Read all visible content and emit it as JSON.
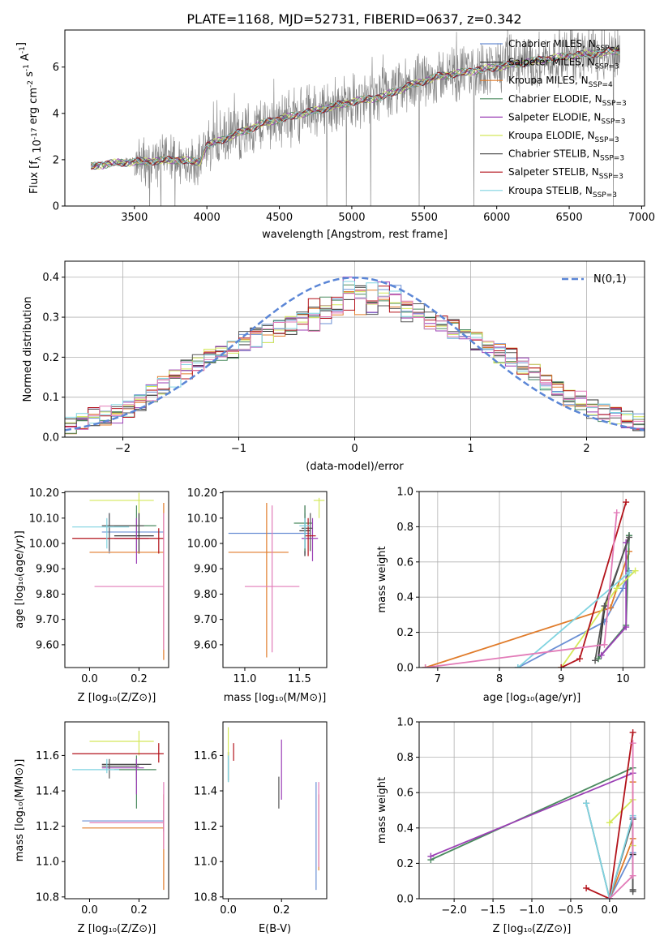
{
  "figure": {
    "title": "PLATE=1168, MJD=52731, FIBERID=0637, z=0.342"
  },
  "series_styles": [
    {
      "name": "Chabrier MILES",
      "nssp": "4",
      "color": "#6a8fd4"
    },
    {
      "name": "Salpeter MILES",
      "nssp": "3",
      "color": "#2e2e2e"
    },
    {
      "name": "Kroupa MILES",
      "nssp": "4",
      "color": "#e07b2a"
    },
    {
      "name": "Chabrier ELODIE",
      "nssp": "3",
      "color": "#4a8a5f"
    },
    {
      "name": "Salpeter ELODIE",
      "nssp": "3",
      "color": "#9b3fb5"
    },
    {
      "name": "Kroupa ELODIE",
      "nssp": "3",
      "color": "#d4e85a"
    },
    {
      "name": "Chabrier STELIB",
      "nssp": "3",
      "color": "#555555"
    },
    {
      "name": "Salpeter STELIB",
      "nssp": "3",
      "color": "#b3131b"
    },
    {
      "name": "Kroupa STELIB",
      "nssp": "3",
      "color": "#7fd3e0"
    }
  ],
  "chart_data": [
    {
      "id": "spectrum",
      "type": "line",
      "xlabel": "wavelength [Angstrom, rest frame]",
      "ylabel": "Flux [f_λ 10^-17 erg cm^-2 s^-1 A^-1]",
      "xlim": [
        3020,
        7020
      ],
      "ylim": [
        0,
        7.6
      ],
      "xticks": [
        3500,
        4000,
        4500,
        5000,
        5500,
        6000,
        6500,
        7000
      ],
      "yticks": [
        0,
        2,
        4,
        6
      ],
      "data_color": "#808080",
      "legend_entries": [
        "Chabrier MILES, N_SSP=4",
        "Salpeter MILES, N_SSP=3",
        "Kroupa MILES, N_SSP=4",
        "Chabrier ELODIE, N_SSP=3",
        "Salpeter ELODIE, N_SSP=3",
        "Kroupa ELODIE, N_SSP=3",
        "Chabrier STELIB, N_SSP=3",
        "Salpeter STELIB, N_SSP=3",
        "Kroupa STELIB, N_SSP=3"
      ],
      "legend_position": "upper right",
      "continuum_anchors_x": [
        3200,
        3350,
        3500,
        3650,
        3800,
        3950,
        4000,
        4200,
        4400,
        4600,
        4800,
        5000,
        5200,
        5400,
        5600,
        5800,
        6000,
        6200,
        6400,
        6600,
        6850
      ],
      "continuum_anchors_y": [
        1.7,
        1.85,
        1.9,
        1.95,
        2.0,
        1.9,
        2.6,
        3.1,
        3.6,
        3.9,
        4.2,
        4.5,
        4.7,
        5.2,
        5.6,
        5.8,
        6.0,
        6.2,
        6.4,
        6.55,
        6.7
      ]
    },
    {
      "id": "residuals",
      "type": "histogram",
      "xlabel": "(data-model)/error",
      "ylabel": "Normed distribution",
      "xlim": [
        -2.5,
        2.5
      ],
      "ylim": [
        0,
        0.44
      ],
      "xticks": [
        -2,
        -1,
        0,
        1,
        2
      ],
      "yticks": [
        0.0,
        0.1,
        0.2,
        0.3,
        0.4
      ],
      "grid": true,
      "bin_start": -2.5,
      "bin_width": 0.1,
      "mean_profile": [
        0.03,
        0.04,
        0.05,
        0.055,
        0.06,
        0.07,
        0.09,
        0.11,
        0.13,
        0.15,
        0.17,
        0.19,
        0.2,
        0.21,
        0.22,
        0.24,
        0.25,
        0.26,
        0.27,
        0.28,
        0.29,
        0.3,
        0.32,
        0.34,
        0.35,
        0.35,
        0.34,
        0.34,
        0.33,
        0.32,
        0.31,
        0.29,
        0.28,
        0.27,
        0.26,
        0.24,
        0.23,
        0.21,
        0.2,
        0.18,
        0.16,
        0.14,
        0.12,
        0.1,
        0.09,
        0.07,
        0.06,
        0.05,
        0.045,
        0.04
      ],
      "gaussian_label": "N(0,1)",
      "gaussian_color": "#5b86d6",
      "legend_position": "upper right"
    },
    {
      "id": "age-vs-Z",
      "type": "errorbar",
      "xlabel": "Z [log10(Z/Z_sun)]",
      "ylabel": "age [log10(age/yr)]",
      "xlim": [
        -0.1,
        0.32
      ],
      "ylim": [
        9.51,
        10.205
      ],
      "xticks": [
        0.0,
        0.2
      ],
      "yticks": [
        9.6,
        9.7,
        9.8,
        9.9,
        10.0,
        10.1,
        10.2
      ],
      "points": [
        {
          "x": 0.08,
          "y": 10.045,
          "xlo": 0.05,
          "xhi": 0.3,
          "ylo": 9.96,
          "yhi": 10.12,
          "c": 0
        },
        {
          "x": 0.2,
          "y": 10.03,
          "xlo": 0.1,
          "xhi": 0.26,
          "ylo": 9.96,
          "yhi": 10.12,
          "c": 1
        },
        {
          "x": 0.3,
          "y": 9.965,
          "xlo": 0.0,
          "xhi": 0.3,
          "ylo": 9.54,
          "yhi": 10.16,
          "c": 2
        },
        {
          "x": 0.19,
          "y": 10.07,
          "xlo": 0.1,
          "xhi": 0.27,
          "ylo": 9.97,
          "yhi": 10.15,
          "c": 3
        },
        {
          "x": 0.19,
          "y": 10.02,
          "xlo": 0.1,
          "xhi": 0.24,
          "ylo": 9.92,
          "yhi": 10.1,
          "c": 4
        },
        {
          "x": 0.2,
          "y": 10.17,
          "xlo": 0.0,
          "xhi": 0.26,
          "ylo": 10.12,
          "yhi": 10.2,
          "c": 5
        },
        {
          "x": 0.08,
          "y": 10.07,
          "xlo": 0.05,
          "xhi": 0.22,
          "ylo": 9.97,
          "yhi": 10.12,
          "c": 6
        },
        {
          "x": 0.28,
          "y": 10.02,
          "xlo": -0.07,
          "xhi": 0.3,
          "ylo": 9.96,
          "yhi": 10.06,
          "c": 7
        },
        {
          "x": 0.07,
          "y": 10.065,
          "xlo": -0.07,
          "xhi": 0.16,
          "ylo": 9.98,
          "yhi": 10.1,
          "c": 8
        },
        {
          "x": 0.3,
          "y": 9.83,
          "xlo": 0.02,
          "xhi": 0.3,
          "ylo": 9.58,
          "yhi": 10.12,
          "c": 9
        }
      ]
    },
    {
      "id": "age-vs-mass",
      "type": "errorbar",
      "xlabel": "mass [log10(M/M_sun)]",
      "ylabel": "",
      "xlim": [
        10.8,
        11.75
      ],
      "ylim": [
        9.51,
        10.205
      ],
      "xticks": [
        11.0,
        11.5
      ],
      "yticks": [
        9.6,
        9.7,
        9.8,
        9.9,
        10.0,
        10.1,
        10.2
      ],
      "points": [
        {
          "x": 11.55,
          "y": 10.04,
          "xlo": 10.85,
          "xhi": 11.6,
          "ylo": 9.96,
          "yhi": 10.12,
          "c": 0
        },
        {
          "x": 11.55,
          "y": 10.05,
          "xlo": 11.5,
          "xhi": 11.6,
          "ylo": 9.95,
          "yhi": 10.15,
          "c": 1
        },
        {
          "x": 11.2,
          "y": 9.965,
          "xlo": 10.85,
          "xhi": 11.4,
          "ylo": 9.55,
          "yhi": 10.16,
          "c": 2
        },
        {
          "x": 11.55,
          "y": 10.08,
          "xlo": 11.45,
          "xhi": 11.62,
          "ylo": 9.97,
          "yhi": 10.15,
          "c": 3
        },
        {
          "x": 11.62,
          "y": 10.02,
          "xlo": 11.52,
          "xhi": 11.67,
          "ylo": 9.93,
          "yhi": 10.1,
          "c": 4
        },
        {
          "x": 11.68,
          "y": 10.17,
          "xlo": 11.63,
          "xhi": 11.73,
          "ylo": 10.1,
          "yhi": 10.18,
          "c": 5
        },
        {
          "x": 11.6,
          "y": 10.06,
          "xlo": 11.52,
          "xhi": 11.62,
          "ylo": 9.97,
          "yhi": 10.12,
          "c": 6
        },
        {
          "x": 11.58,
          "y": 10.03,
          "xlo": 11.55,
          "xhi": 11.65,
          "ylo": 9.95,
          "yhi": 10.1,
          "c": 7
        },
        {
          "x": 11.55,
          "y": 10.07,
          "xlo": 11.5,
          "xhi": 11.6,
          "ylo": 9.98,
          "yhi": 10.1,
          "c": 8
        },
        {
          "x": 11.25,
          "y": 9.83,
          "xlo": 11.0,
          "xhi": 11.5,
          "ylo": 9.57,
          "yhi": 10.15,
          "c": 9
        }
      ]
    },
    {
      "id": "weight-vs-age",
      "type": "line",
      "xlabel": "age [log10(age/yr)]",
      "ylabel": "mass weight",
      "xlim": [
        6.7,
        10.35
      ],
      "ylim": [
        0,
        1
      ],
      "xticks": [
        7,
        8,
        9,
        10
      ],
      "yticks": [
        0.0,
        0.2,
        0.4,
        0.6,
        0.8,
        1.0
      ],
      "grid": true,
      "lines": [
        {
          "c": 0,
          "x": [
            8.3,
            9.7,
            10.0,
            10.1
          ],
          "y": [
            0.0,
            0.26,
            0.45,
            0.55
          ]
        },
        {
          "c": 1,
          "x": [
            9.6,
            9.7,
            10.1
          ],
          "y": [
            0.05,
            0.33,
            0.75
          ]
        },
        {
          "c": 2,
          "x": [
            6.8,
            9.8,
            10.1
          ],
          "y": [
            0.0,
            0.34,
            0.66
          ]
        },
        {
          "c": 3,
          "x": [
            9.6,
            10.05,
            10.1
          ],
          "y": [
            0.05,
            0.24,
            0.75
          ]
        },
        {
          "c": 4,
          "x": [
            9.65,
            10.05,
            10.05
          ],
          "y": [
            0.07,
            0.23,
            0.71
          ]
        },
        {
          "c": 5,
          "x": [
            9.0,
            9.9,
            10.2
          ],
          "y": [
            0.0,
            0.45,
            0.55
          ]
        },
        {
          "c": 6,
          "x": [
            9.55,
            9.7,
            10.1
          ],
          "y": [
            0.04,
            0.35,
            0.74
          ]
        },
        {
          "c": 7,
          "x": [
            9.0,
            9.3,
            10.05
          ],
          "y": [
            0.0,
            0.05,
            0.94
          ]
        },
        {
          "c": 8,
          "x": [
            8.3,
            10.1
          ],
          "y": [
            0.0,
            0.54
          ]
        },
        {
          "c": 9,
          "x": [
            6.8,
            9.7,
            9.9
          ],
          "y": [
            0.0,
            0.13,
            0.88
          ]
        }
      ]
    },
    {
      "id": "mass-vs-Z",
      "type": "errorbar",
      "xlabel": "Z [log10(Z/Z_sun)]",
      "ylabel": "mass [log10(M/M_sun)]",
      "xlim": [
        -0.1,
        0.32
      ],
      "ylim": [
        10.79,
        11.79
      ],
      "xticks": [
        0.0,
        0.2
      ],
      "yticks": [
        10.8,
        11.0,
        11.2,
        11.4,
        11.6
      ],
      "points": [
        {
          "x": 0.3,
          "y": 11.23,
          "xlo": -0.03,
          "xhi": 0.3,
          "ylo": 11.17,
          "yhi": 11.29,
          "c": 0
        },
        {
          "x": 0.19,
          "y": 11.55,
          "xlo": 0.05,
          "xhi": 0.25,
          "ylo": 11.46,
          "yhi": 11.58,
          "c": 1
        },
        {
          "x": 0.3,
          "y": 11.19,
          "xlo": -0.03,
          "xhi": 0.3,
          "ylo": 10.84,
          "yhi": 11.38,
          "c": 2
        },
        {
          "x": 0.19,
          "y": 11.52,
          "xlo": 0.1,
          "xhi": 0.27,
          "ylo": 11.3,
          "yhi": 11.6,
          "c": 3
        },
        {
          "x": 0.19,
          "y": 11.53,
          "xlo": 0.05,
          "xhi": 0.22,
          "ylo": 11.38,
          "yhi": 11.58,
          "c": 4
        },
        {
          "x": 0.2,
          "y": 11.68,
          "xlo": 0.0,
          "xhi": 0.26,
          "ylo": 11.6,
          "yhi": 11.74,
          "c": 5
        },
        {
          "x": 0.08,
          "y": 11.54,
          "xlo": 0.05,
          "xhi": 0.2,
          "ylo": 11.47,
          "yhi": 11.58,
          "c": 6
        },
        {
          "x": 0.28,
          "y": 11.61,
          "xlo": -0.07,
          "xhi": 0.3,
          "ylo": 11.56,
          "yhi": 11.67,
          "c": 7
        },
        {
          "x": 0.07,
          "y": 11.52,
          "xlo": -0.07,
          "xhi": 0.12,
          "ylo": 11.5,
          "yhi": 11.58,
          "c": 8
        },
        {
          "x": 0.3,
          "y": 11.22,
          "xlo": 0.0,
          "xhi": 0.3,
          "ylo": 11.07,
          "yhi": 11.45,
          "c": 9
        }
      ]
    },
    {
      "id": "mass-vs-EBV",
      "type": "errorbar",
      "xlabel": "E(B-V)",
      "ylabel": "",
      "xlim": [
        -0.02,
        0.37
      ],
      "ylim": [
        10.79,
        11.79
      ],
      "xticks": [
        0.0,
        0.2
      ],
      "yticks": [
        10.8,
        11.0,
        11.2,
        11.4,
        11.6
      ],
      "points": [
        {
          "x": 0.33,
          "y": 11.23,
          "ylo": 10.84,
          "yhi": 11.45,
          "c": 0
        },
        {
          "x": 0.0,
          "y": 11.55,
          "ylo": 11.46,
          "yhi": 11.62,
          "c": 1
        },
        {
          "x": 0.34,
          "y": 11.19,
          "ylo": 10.95,
          "yhi": 11.38,
          "c": 2
        },
        {
          "x": 0.0,
          "y": 11.52,
          "ylo": 11.45,
          "yhi": 11.62,
          "c": 3
        },
        {
          "x": 0.2,
          "y": 11.53,
          "ylo": 11.35,
          "yhi": 11.69,
          "c": 4
        },
        {
          "x": 0.0,
          "y": 11.68,
          "ylo": 11.58,
          "yhi": 11.76,
          "c": 5
        },
        {
          "x": 0.19,
          "y": 11.4,
          "ylo": 11.3,
          "yhi": 11.48,
          "c": 6
        },
        {
          "x": 0.02,
          "y": 11.61,
          "ylo": 11.57,
          "yhi": 11.67,
          "c": 7
        },
        {
          "x": 0.0,
          "y": 11.52,
          "ylo": 11.45,
          "yhi": 11.6,
          "c": 8
        },
        {
          "x": 0.34,
          "y": 11.22,
          "ylo": 10.97,
          "yhi": 11.45,
          "c": 9
        }
      ]
    },
    {
      "id": "weight-vs-Z",
      "type": "line",
      "xlabel": "Z [log10(Z/Z_sun)]",
      "ylabel": "mass weight",
      "xlim": [
        -2.45,
        0.45
      ],
      "ylim": [
        0,
        1
      ],
      "xticks": [
        -2.0,
        -1.5,
        -1.0,
        -0.5,
        0.0
      ],
      "yticks": [
        0.0,
        0.2,
        0.4,
        0.6,
        0.8,
        1.0
      ],
      "grid": true,
      "lines": [
        {
          "c": 0,
          "x": [
            0.0,
            0.3,
            0.3
          ],
          "y": [
            0.0,
            0.26,
            0.46
          ]
        },
        {
          "c": 1,
          "x": [
            0.3,
            0.3,
            0.3
          ],
          "y": [
            0.05,
            0.25,
            0.45
          ]
        },
        {
          "c": 2,
          "x": [
            0.0,
            0.3,
            0.3
          ],
          "y": [
            0.0,
            0.34,
            0.66
          ]
        },
        {
          "c": 3,
          "x": [
            -2.3,
            0.3
          ],
          "y": [
            0.22,
            0.74
          ]
        },
        {
          "c": 4,
          "x": [
            -2.3,
            0.3
          ],
          "y": [
            0.24,
            0.71
          ]
        },
        {
          "c": 5,
          "x": [
            0.0,
            0.3,
            0.3
          ],
          "y": [
            0.43,
            0.56,
            0.3
          ]
        },
        {
          "c": 6,
          "x": [
            -0.3,
            0.0,
            0.3,
            0.3
          ],
          "y": [
            0.54,
            0.0,
            0.45,
            0.04
          ]
        },
        {
          "c": 7,
          "x": [
            -0.3,
            0.0,
            0.3
          ],
          "y": [
            0.06,
            0.0,
            0.94
          ]
        },
        {
          "c": 8,
          "x": [
            -0.3,
            0.0,
            0.3
          ],
          "y": [
            0.54,
            0.0,
            0.47
          ]
        },
        {
          "c": 9,
          "x": [
            0.0,
            0.3,
            0.3
          ],
          "y": [
            0.0,
            0.13,
            0.88
          ]
        }
      ]
    }
  ]
}
